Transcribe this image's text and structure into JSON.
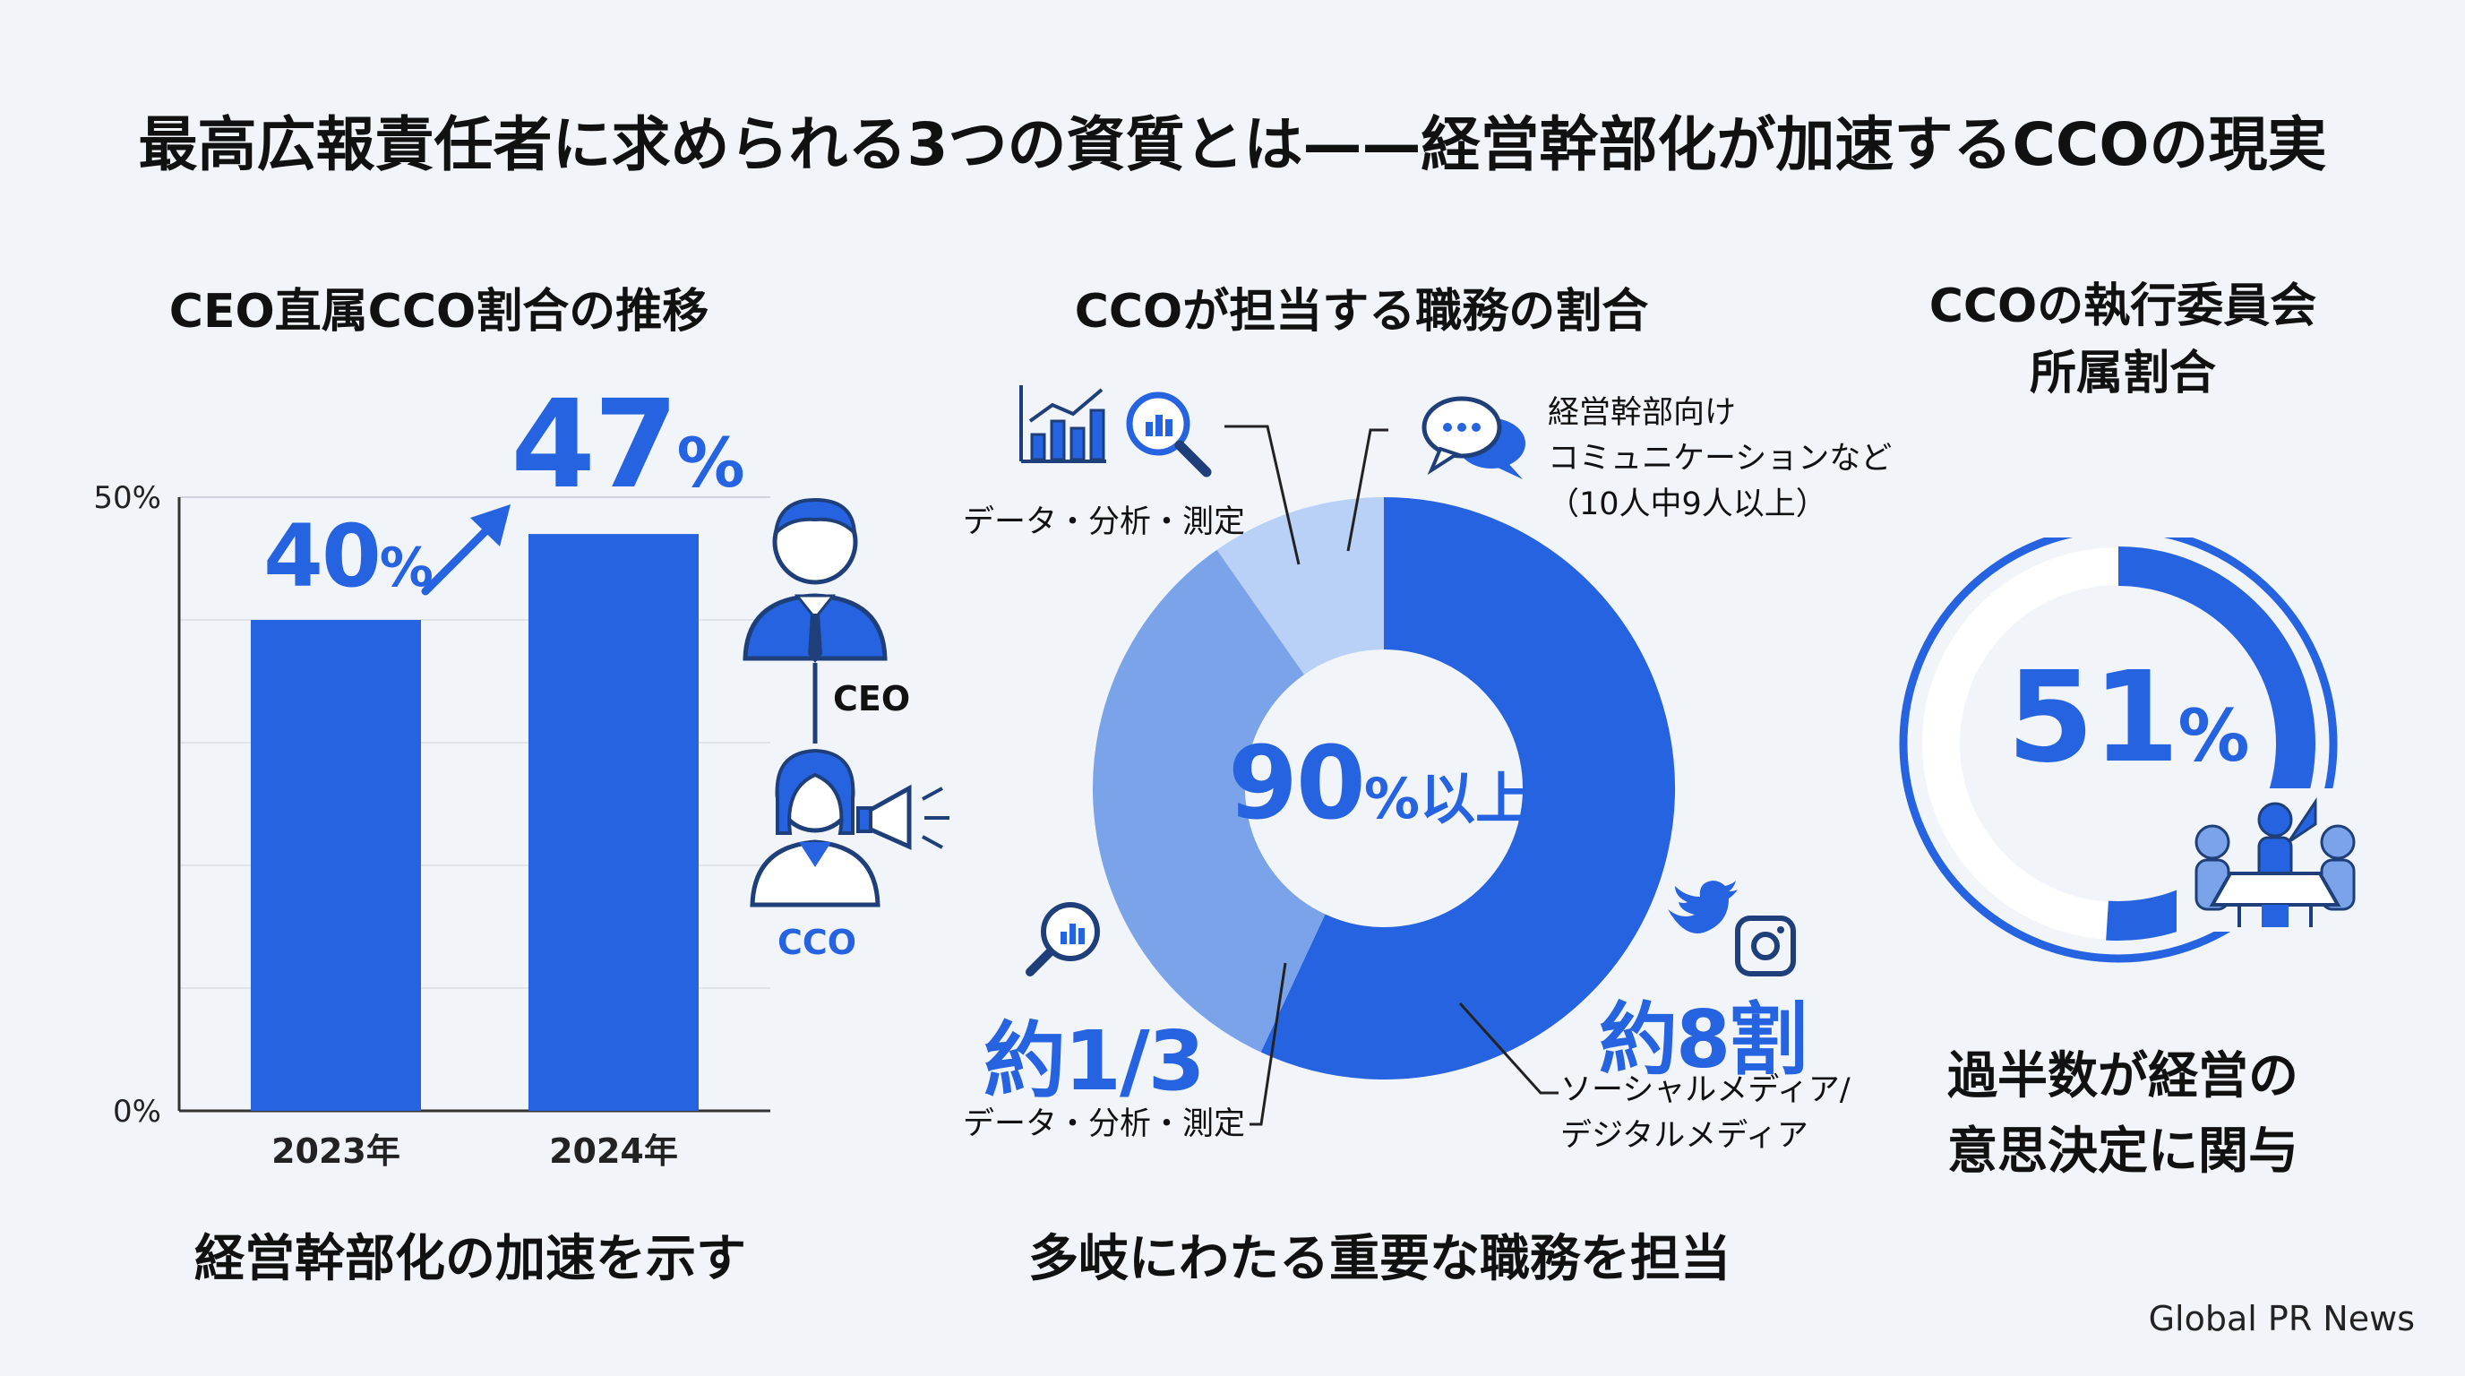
{
  "title": "最高広報責任者に求められる3つの資質とは——経営幹部化が加速するCCOの現実",
  "colors": {
    "primary": "#2563e0",
    "mid": "#7aa3ea",
    "light": "#b9d0f7",
    "bg": "#f1f4f9"
  },
  "panel1": {
    "title": "CEO直属CCO割合の推移",
    "caption": "経営幹部化の加速を示す",
    "y_max_label": "50%",
    "y_min_label": "0%",
    "label_2023_num": "40",
    "label_2024_num": "47",
    "pct": "%",
    "ceo_label": "CEO",
    "cco_label": "CCO"
  },
  "panel2": {
    "title": "CCOが担当する職務の割合",
    "caption": "多岐にわたる重要な職務を担当",
    "center_num": "90",
    "center_suffix": "%以上",
    "top_left_label": "データ・分析・測定",
    "top_right_label_1": "経営幹部向け",
    "top_right_label_2": "コミュニケーションなど",
    "top_right_label_3": "（10人中9人以上）",
    "bottom_left_value": "約1/3",
    "bottom_left_label": "データ・分析・測定",
    "bottom_right_value": "約8割",
    "bottom_right_label_1": "ソーシャルメディア/",
    "bottom_right_label_2": "デジタルメディア"
  },
  "panel3": {
    "title_1": "CCOの執行委員会",
    "title_2": "所属割合",
    "value_num": "51",
    "pct": "%",
    "caption_1": "過半数が経営の",
    "caption_2": "意思決定に関与"
  },
  "chart_data": [
    {
      "type": "bar",
      "title": "CEO直属CCO割合の推移",
      "categories": [
        "2023年",
        "2024年"
      ],
      "values": [
        40,
        47
      ],
      "ylim": [
        0,
        50
      ],
      "unit": "%",
      "grid": true
    },
    {
      "type": "pie",
      "title": "CCOが担当する職務の割合",
      "center_label": "90%以上",
      "series": [
        {
          "name": "経営幹部向けコミュニケーションなど",
          "value": 90,
          "color": "#b9d0f7"
        },
        {
          "name": "ソーシャルメディア/デジタルメディア",
          "value": 80,
          "color": "#2563e0"
        },
        {
          "name": "データ・分析・測定",
          "value": 33,
          "color": "#7aa3ea"
        }
      ]
    },
    {
      "type": "pie",
      "title": "CCOの執行委員会所属割合",
      "value": 51,
      "unit": "%"
    }
  ],
  "footer": {
    "brand": "Global PR News"
  }
}
